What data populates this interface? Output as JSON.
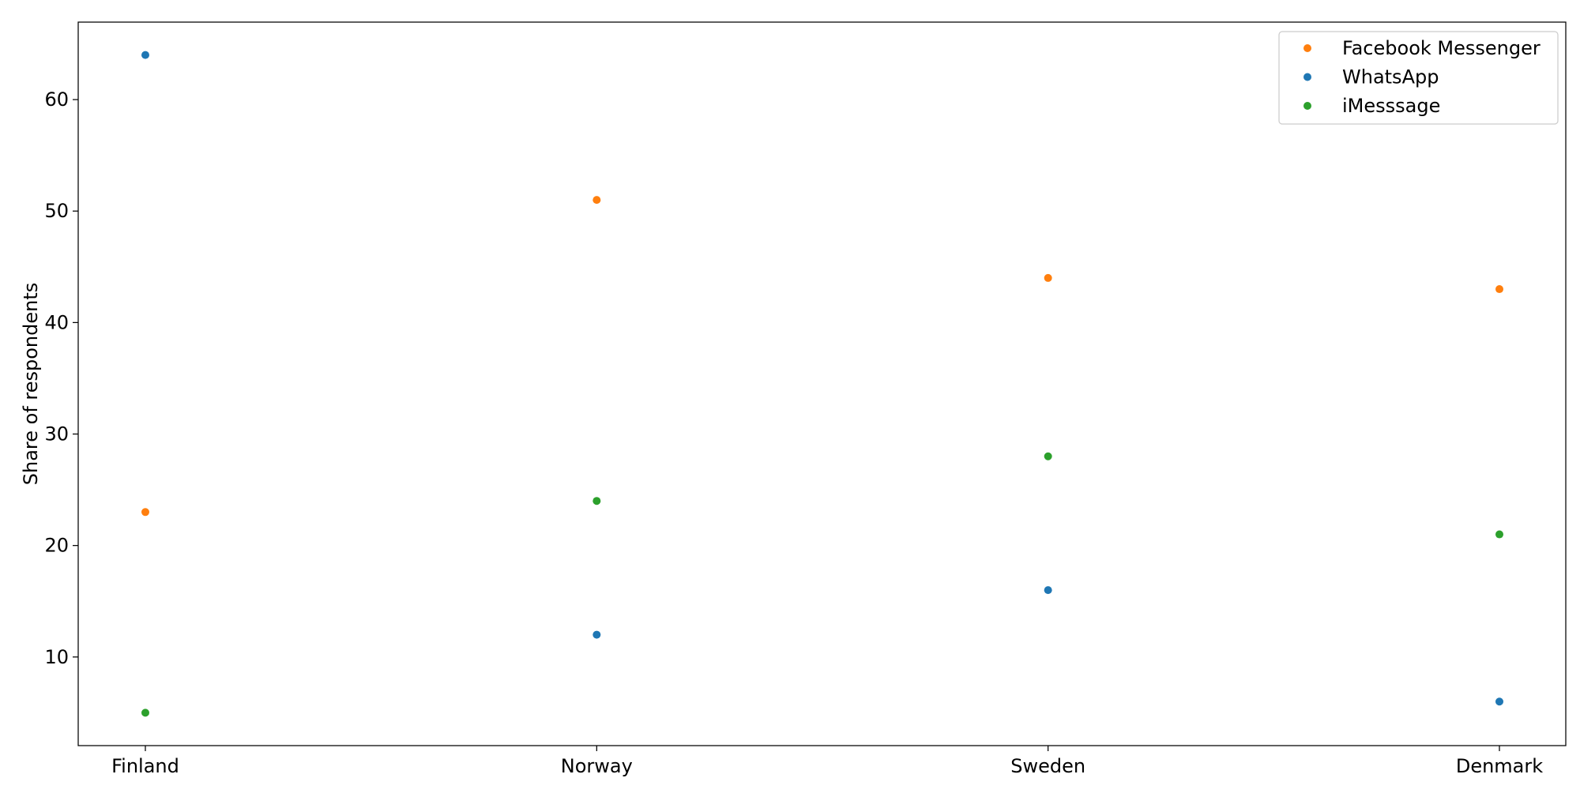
{
  "chart_data": {
    "type": "scatter",
    "categories": [
      "Finland",
      "Norway",
      "Sweden",
      "Denmark"
    ],
    "series": [
      {
        "name": "Facebook Messenger",
        "color": "#ff7f0e",
        "values": [
          23,
          51,
          44,
          43
        ]
      },
      {
        "name": "WhatsApp",
        "color": "#1f77b4",
        "values": [
          64,
          12,
          16,
          6
        ]
      },
      {
        "name": "iMesssage",
        "color": "#2ca02c",
        "values": [
          5,
          24,
          28,
          21
        ]
      }
    ],
    "title": "",
    "xlabel": "",
    "ylabel": "Share of respondents",
    "ylim": [
      2.05,
      66.95
    ],
    "yticks": [
      10,
      20,
      30,
      40,
      50,
      60
    ],
    "grid": false,
    "legend": "top-right"
  }
}
